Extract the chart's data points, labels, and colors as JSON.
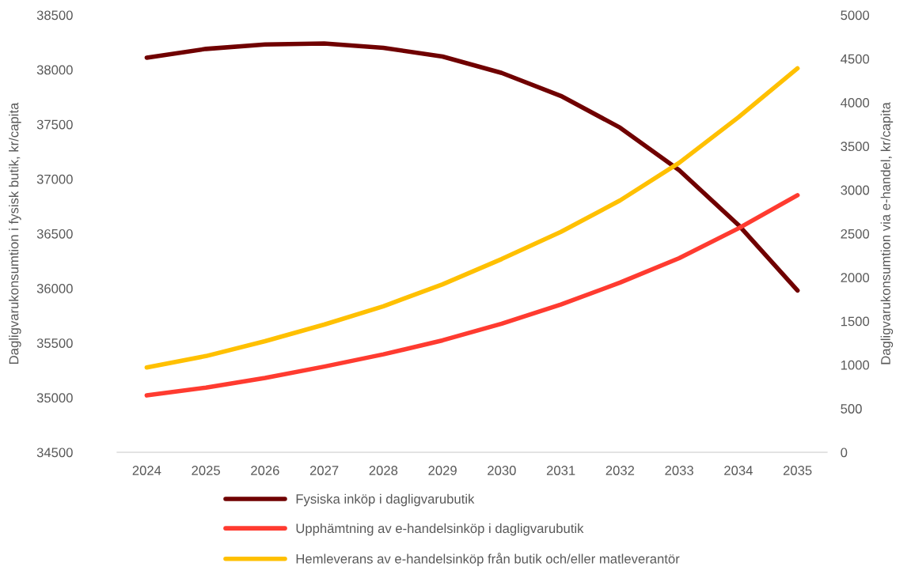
{
  "chart_data": {
    "type": "line",
    "categories": [
      "2024",
      "2025",
      "2026",
      "2027",
      "2028",
      "2029",
      "2030",
      "2031",
      "2032",
      "2033",
      "2034",
      "2035"
    ],
    "ylabel": "Dagligvarukonsumtion i fysisk butik, kr/capita",
    "y2label": "Dagligvarukonsumtion via e-handel, kr/capita",
    "ylim": [
      34500,
      38500
    ],
    "yticks": [
      34500,
      35000,
      35500,
      36000,
      36500,
      37000,
      37500,
      38000,
      38500
    ],
    "y2lim": [
      0,
      5000
    ],
    "y2ticks": [
      0,
      500,
      1000,
      1500,
      2000,
      2500,
      3000,
      3500,
      4000,
      4500,
      5000
    ],
    "legend": "bottom",
    "grid": false,
    "marker": "none",
    "line_style": "solid",
    "series": [
      {
        "name": "Fysiska inköp i dagligvarubutik",
        "color": "#700000",
        "values": [
          38110,
          38190,
          38230,
          38240,
          38200,
          38120,
          37970,
          37760,
          37470,
          37080,
          36580,
          35980
        ]
      },
      {
        "name": "Upphämtning av e-handelsinköp i dagligvarubutik",
        "color": "#ff3b30",
        "axis": "y2",
        "values": [
          650,
          740,
          850,
          980,
          1120,
          1280,
          1470,
          1690,
          1940,
          2220,
          2560,
          2940
        ]
      },
      {
        "name": "Hemleverans av e-handelsinköp från butik och/eller matleverantör",
        "color": "#ffc000",
        "axis": "y2",
        "values": [
          970,
          1100,
          1270,
          1460,
          1670,
          1920,
          2210,
          2520,
          2880,
          3310,
          3830,
          4390
        ]
      }
    ]
  }
}
